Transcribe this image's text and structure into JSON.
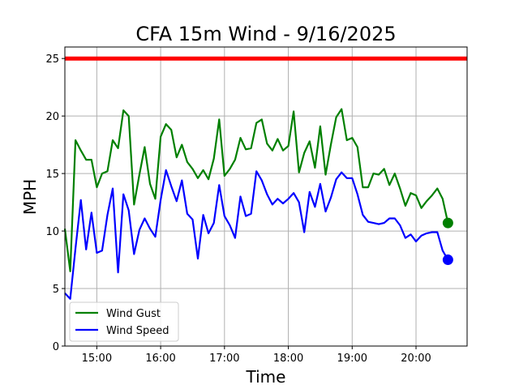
{
  "chart_data": {
    "type": "line",
    "title": "CFA 15m Wind - 9/16/2025",
    "xlabel": "Time",
    "ylabel": "MPH",
    "xlim": [
      "14:30",
      "20:48"
    ],
    "ylim": [
      0,
      26
    ],
    "x_ticks": [
      "15:00",
      "16:00",
      "17:00",
      "18:00",
      "19:00",
      "20:00"
    ],
    "y_ticks": [
      0,
      5,
      10,
      15,
      20,
      25
    ],
    "grid": true,
    "legend_position": "lower-left",
    "threshold": {
      "value": 25,
      "color": "#ff0000"
    },
    "series": [
      {
        "name": "Wind Gust",
        "color": "#008000",
        "x": [
          "14:30",
          "14:35",
          "14:40",
          "14:45",
          "14:50",
          "14:55",
          "15:00",
          "15:05",
          "15:10",
          "15:15",
          "15:20",
          "15:25",
          "15:30",
          "15:35",
          "15:40",
          "15:45",
          "15:50",
          "15:55",
          "16:00",
          "16:05",
          "16:10",
          "16:15",
          "16:20",
          "16:25",
          "16:30",
          "16:35",
          "16:40",
          "16:45",
          "16:50",
          "16:55",
          "17:00",
          "17:05",
          "17:10",
          "17:15",
          "17:20",
          "17:25",
          "17:30",
          "17:35",
          "17:40",
          "17:45",
          "17:50",
          "17:55",
          "18:00",
          "18:05",
          "18:10",
          "18:15",
          "18:20",
          "18:25",
          "18:30",
          "18:35",
          "18:40",
          "18:45",
          "18:50",
          "18:55",
          "19:00",
          "19:05",
          "19:10",
          "19:15",
          "19:20",
          "19:25",
          "19:30",
          "19:35",
          "19:40",
          "19:45",
          "19:50",
          "19:55",
          "20:00",
          "20:05",
          "20:10",
          "20:15",
          "20:20",
          "20:25",
          "20:30"
        ],
        "values": [
          10.2,
          6.5,
          17.9,
          17.0,
          16.2,
          16.2,
          13.8,
          15.0,
          15.2,
          17.9,
          17.2,
          20.5,
          20.0,
          12.3,
          14.9,
          17.3,
          14.1,
          12.8,
          18.2,
          19.3,
          18.8,
          16.4,
          17.5,
          16.0,
          15.4,
          14.6,
          15.3,
          14.5,
          16.3,
          19.7,
          14.8,
          15.4,
          16.2,
          18.1,
          17.1,
          17.2,
          19.4,
          19.7,
          17.6,
          17.0,
          18.0,
          17.0,
          17.4,
          20.4,
          15.1,
          16.8,
          17.8,
          15.5,
          19.1,
          14.9,
          17.5,
          19.9,
          20.6,
          17.9,
          18.1,
          17.3,
          13.8,
          13.8,
          15.0,
          14.9,
          15.4,
          14.0,
          15.0,
          13.7,
          12.2,
          13.3,
          13.1,
          12.0,
          12.6,
          13.1,
          13.7,
          12.8,
          10.7
        ]
      },
      {
        "name": "Wind Speed",
        "color": "#0000ff",
        "x": [
          "14:30",
          "14:35",
          "14:40",
          "14:45",
          "14:50",
          "14:55",
          "15:00",
          "15:05",
          "15:10",
          "15:15",
          "15:20",
          "15:25",
          "15:30",
          "15:35",
          "15:40",
          "15:45",
          "15:50",
          "15:55",
          "16:00",
          "16:05",
          "16:10",
          "16:15",
          "16:20",
          "16:25",
          "16:30",
          "16:35",
          "16:40",
          "16:45",
          "16:50",
          "16:55",
          "17:00",
          "17:05",
          "17:10",
          "17:15",
          "17:20",
          "17:25",
          "17:30",
          "17:35",
          "17:40",
          "17:45",
          "17:50",
          "17:55",
          "18:00",
          "18:05",
          "18:10",
          "18:15",
          "18:20",
          "18:25",
          "18:30",
          "18:35",
          "18:40",
          "18:45",
          "18:50",
          "18:55",
          "19:00",
          "19:05",
          "19:10",
          "19:15",
          "19:20",
          "19:25",
          "19:30",
          "19:35",
          "19:40",
          "19:45",
          "19:50",
          "19:55",
          "20:00",
          "20:05",
          "20:10",
          "20:15",
          "20:20",
          "20:25",
          "20:30"
        ],
        "values": [
          4.6,
          4.1,
          8.5,
          12.7,
          8.4,
          11.6,
          8.1,
          8.3,
          11.4,
          13.7,
          6.4,
          13.2,
          11.8,
          8.0,
          10.1,
          11.1,
          10.2,
          9.5,
          12.7,
          15.3,
          13.9,
          12.6,
          14.4,
          11.5,
          11.0,
          7.6,
          11.4,
          9.8,
          10.7,
          14.0,
          11.3,
          10.5,
          9.4,
          13.0,
          11.3,
          11.5,
          15.2,
          14.4,
          13.2,
          12.3,
          12.8,
          12.4,
          12.8,
          13.3,
          12.5,
          9.9,
          13.4,
          12.1,
          14.1,
          11.7,
          12.9,
          14.5,
          15.1,
          14.6,
          14.6,
          13.2,
          11.4,
          10.8,
          10.7,
          10.6,
          10.7,
          11.1,
          11.1,
          10.5,
          9.4,
          9.7,
          9.1,
          9.6,
          9.8,
          9.9,
          9.9,
          8.3,
          7.5
        ]
      }
    ]
  }
}
